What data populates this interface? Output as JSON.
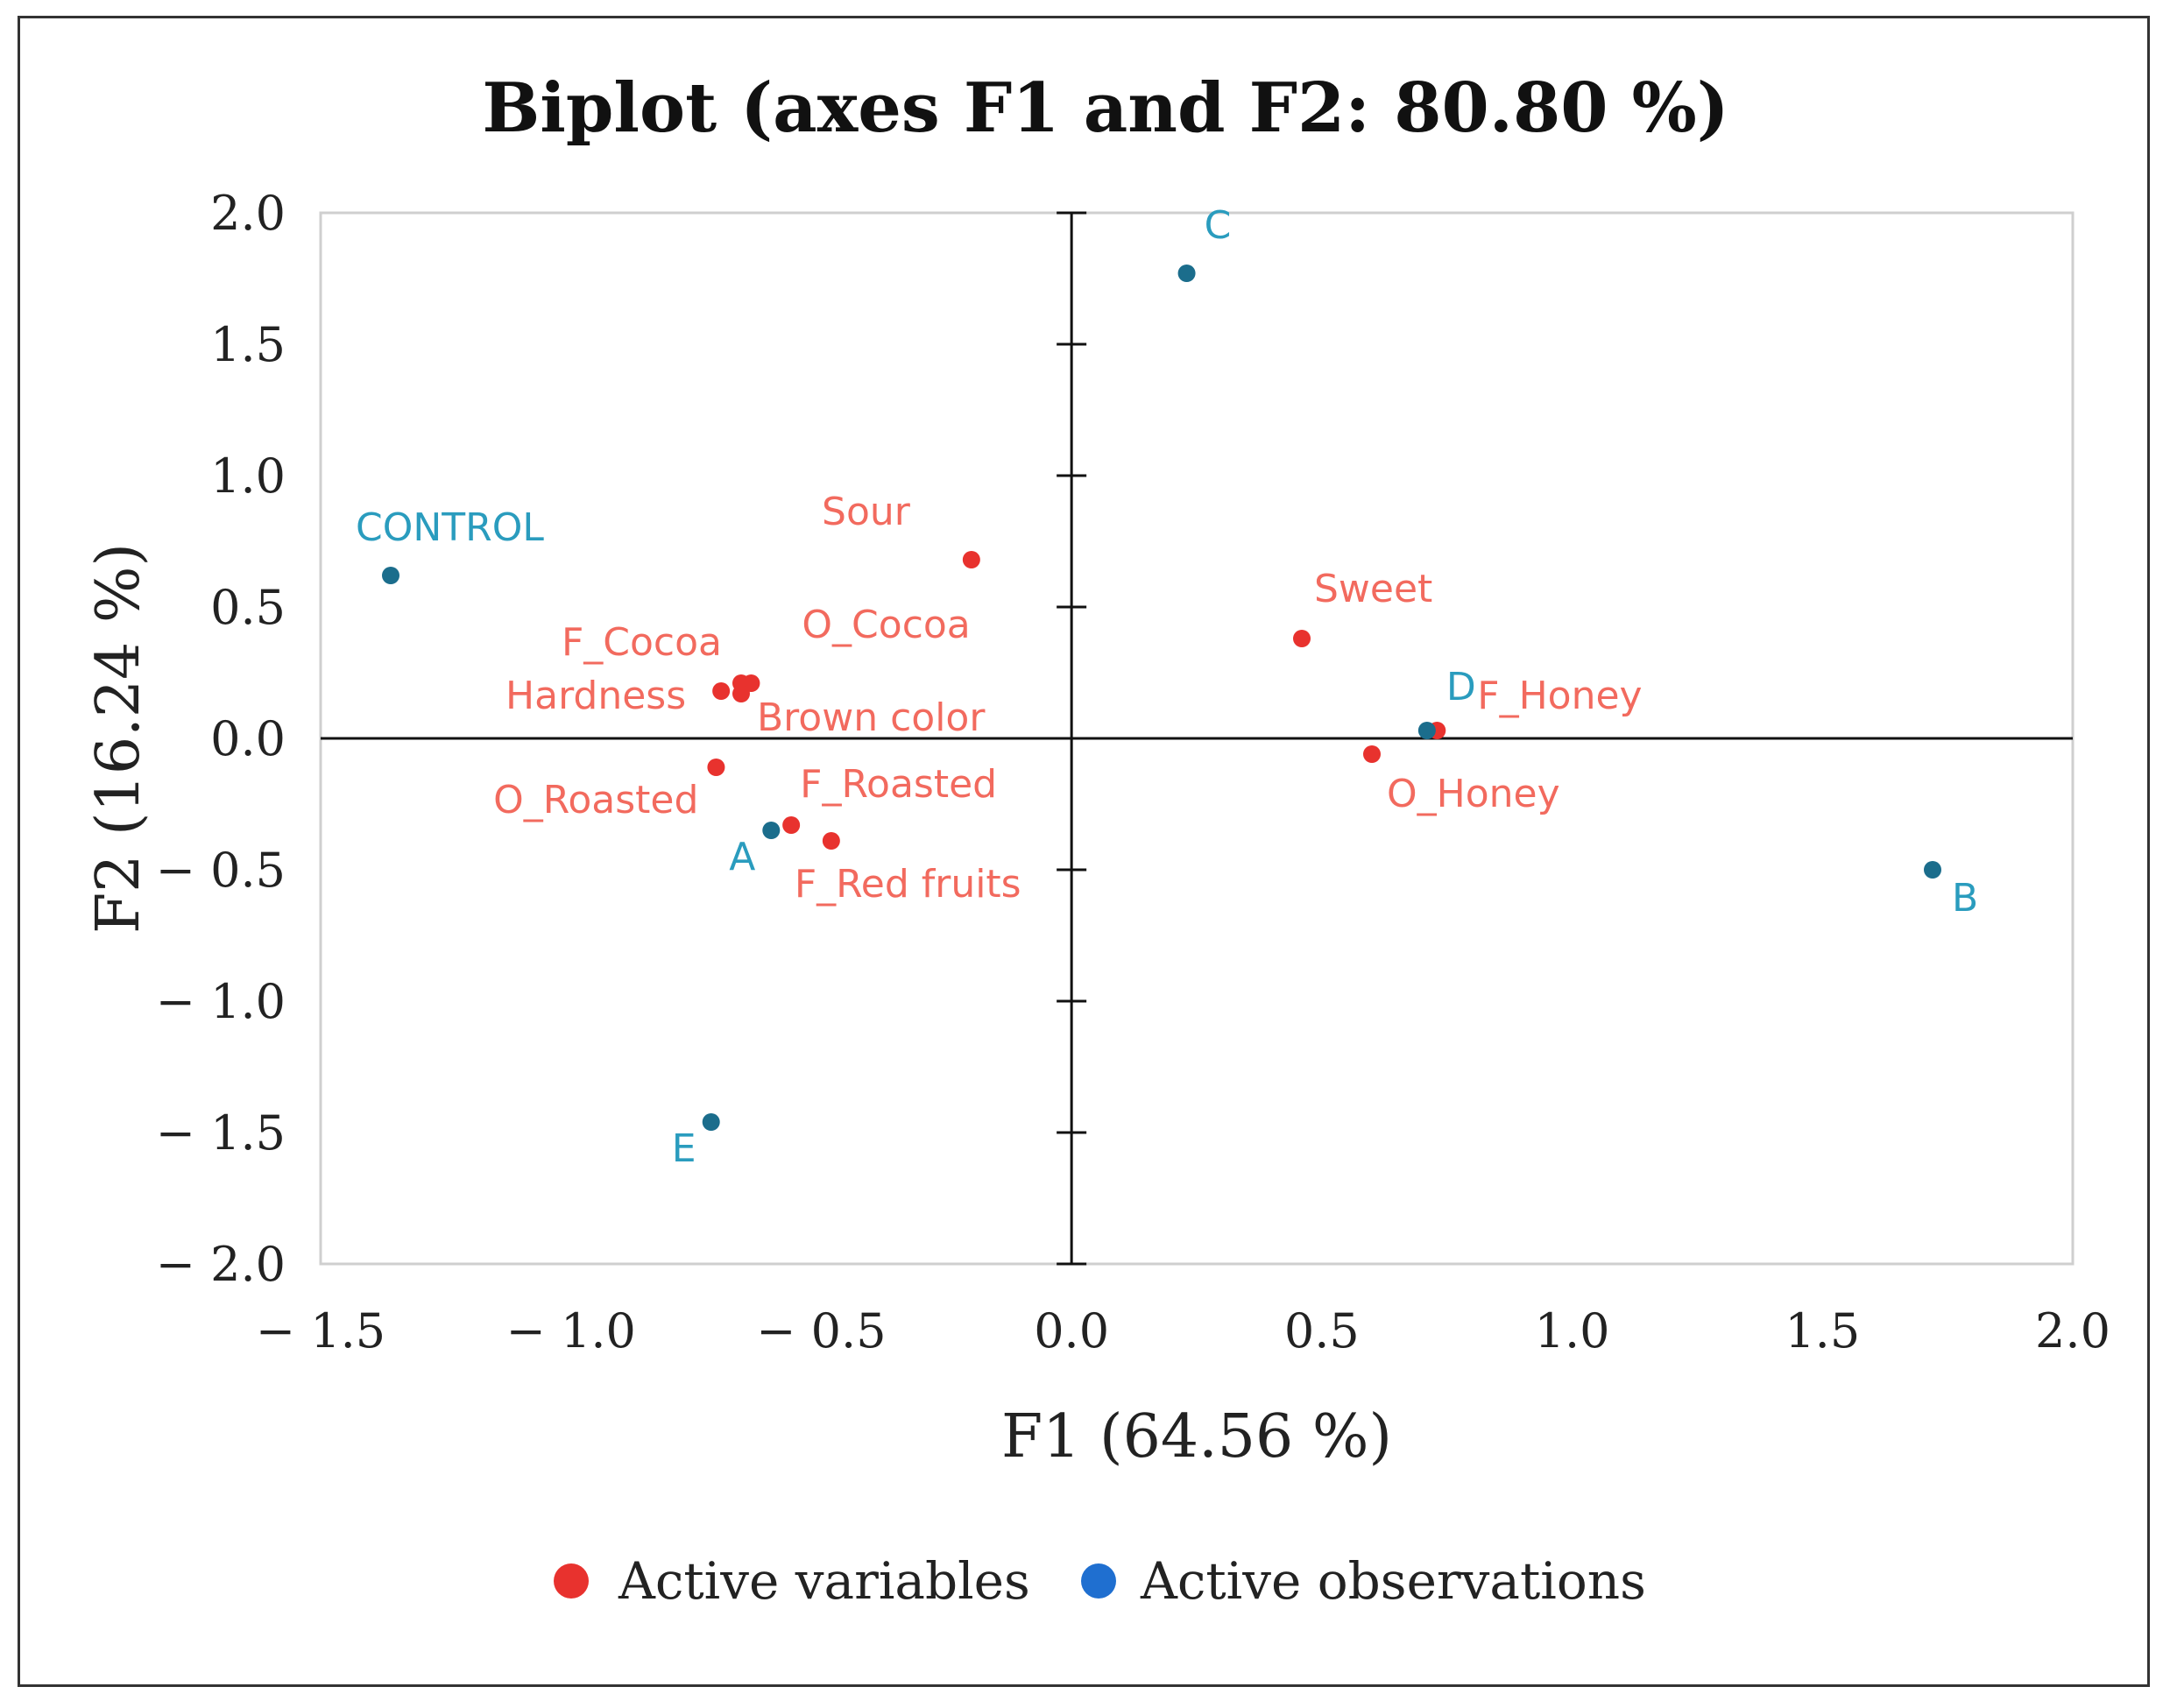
{
  "chart_data": {
    "type": "scatter",
    "title": "Biplot (axes F1 and F2: 80.80 %)",
    "xlabel": "F1 (64.56 %)",
    "ylabel": "F2 (16.24 %)",
    "xlim": [
      -1.5,
      2.0
    ],
    "ylim": [
      -2.0,
      2.0
    ],
    "x_ticks": [
      -1.5,
      -1.0,
      -0.5,
      0.0,
      0.5,
      1.0,
      1.5,
      2.0
    ],
    "y_ticks": [
      -2.0,
      -1.5,
      -1.0,
      -0.5,
      0.0,
      0.5,
      1.0,
      1.5,
      2.0
    ],
    "x_tick_labels": [
      "− 1.5",
      "− 1.0",
      "− 0.5",
      "0.0",
      "0.5",
      "1.0",
      "1.5",
      "2.0"
    ],
    "y_tick_labels": [
      "− 2.0",
      "− 1.5",
      "− 1.0",
      "− 0.5",
      "0.0",
      "0.5",
      "1.0",
      "1.5",
      "2.0"
    ],
    "grid": false,
    "legend_position": "bottom-center",
    "series": [
      {
        "name": "Active variables",
        "color": "#e8322e",
        "points": [
          {
            "label": "Sour",
            "x": -0.2,
            "y": 0.68
          },
          {
            "label": "O_Cocoa",
            "x": -0.64,
            "y": 0.21
          },
          {
            "label": "F_Cocoa",
            "x": -0.66,
            "y": 0.21
          },
          {
            "label": "Brown color",
            "x": -0.66,
            "y": 0.17
          },
          {
            "label": "Hardness",
            "x": -0.7,
            "y": 0.18
          },
          {
            "label": "O_Roasted",
            "x": -0.71,
            "y": -0.11
          },
          {
            "label": "F_Roasted",
            "x": -0.56,
            "y": -0.33
          },
          {
            "label": "F_Red fruits",
            "x": -0.48,
            "y": -0.39
          },
          {
            "label": "Sweet",
            "x": 0.46,
            "y": 0.38
          },
          {
            "label": "F_Honey",
            "x": 0.73,
            "y": 0.03
          },
          {
            "label": "O_Honey",
            "x": 0.6,
            "y": -0.06
          }
        ]
      },
      {
        "name": "Active observations",
        "color": "#1b6d8c",
        "legend_color": "#1f6fd0",
        "points": [
          {
            "label": "C",
            "x": 0.23,
            "y": 1.77
          },
          {
            "label": "CONTROL",
            "x": -1.36,
            "y": 0.62
          },
          {
            "label": "D",
            "x": 0.71,
            "y": 0.03
          },
          {
            "label": "A",
            "x": -0.6,
            "y": -0.35
          },
          {
            "label": "B",
            "x": 1.72,
            "y": -0.5
          },
          {
            "label": "E",
            "x": -0.72,
            "y": -1.46
          }
        ]
      }
    ]
  }
}
